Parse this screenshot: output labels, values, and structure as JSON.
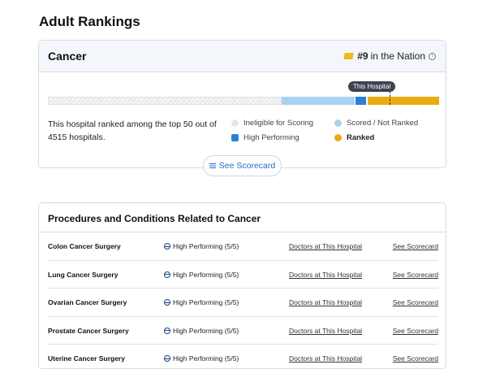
{
  "page": {
    "title": "Adult Rankings"
  },
  "specialty": {
    "title": "Cancer",
    "rank": "#9",
    "rank_suffix": "in the Nation",
    "marker_label": "This Hospital",
    "description": "This hospital ranked among the top 50 out of 4515 hospitals.",
    "legend": [
      {
        "label": "Ineligible for Scoring",
        "color": "#e4e6e9"
      },
      {
        "label": "Scored / Not Ranked",
        "color": "#a8d3f0"
      },
      {
        "label": "High Performing",
        "color": "#2b7fd9"
      },
      {
        "label": "Ranked",
        "color": "#ebac10"
      }
    ],
    "scorecard_button": "See Scorecard"
  },
  "procedures": {
    "title": "Procedures and Conditions Related to Cancer",
    "rows": [
      {
        "name": "Colon Cancer Surgery",
        "rating": "High Performing (5/5)",
        "doctors_link": "Doctors at This Hospital",
        "scorecard_link": "See Scorecard"
      },
      {
        "name": "Lung Cancer Surgery",
        "rating": "High Performing (5/5)",
        "doctors_link": "Doctors at This Hospital",
        "scorecard_link": "See Scorecard"
      },
      {
        "name": "Ovarian Cancer Surgery",
        "rating": "High Performing (5/5)",
        "doctors_link": "Doctors at This Hospital",
        "scorecard_link": "See Scorecard"
      },
      {
        "name": "Prostate Cancer Surgery",
        "rating": "High Performing (5/5)",
        "doctors_link": "Doctors at This Hospital",
        "scorecard_link": "See Scorecard"
      },
      {
        "name": "Uterine Cancer Surgery",
        "rating": "High Performing (5/5)",
        "doctors_link": "Doctors at This Hospital",
        "scorecard_link": "See Scorecard"
      }
    ]
  },
  "colors": {
    "accent": "#1a6fc9",
    "ranked": "#ebac10",
    "high_performing": "#2b7fd9",
    "scored": "#a8d3f0"
  }
}
